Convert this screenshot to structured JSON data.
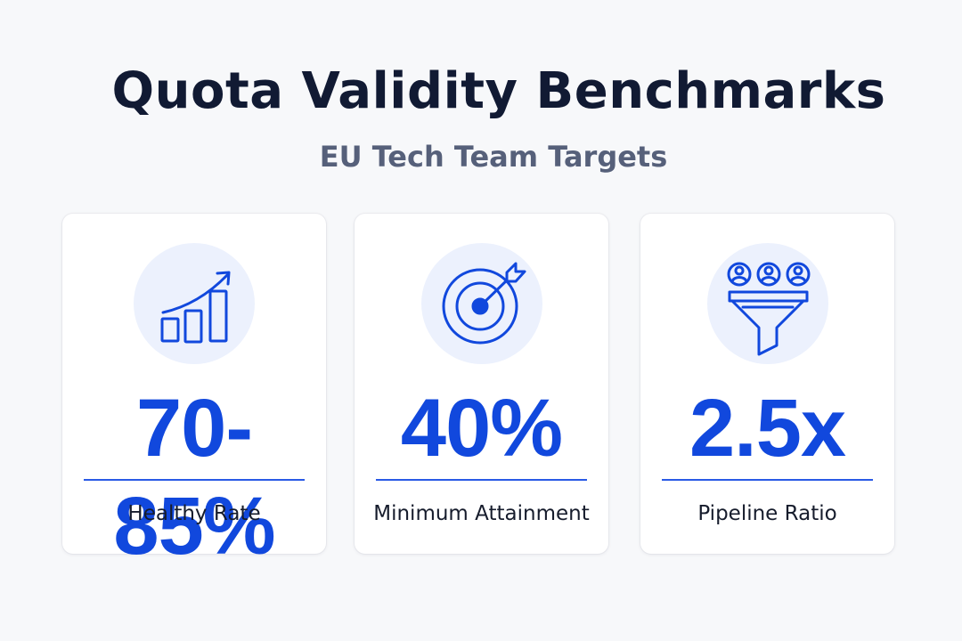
{
  "header": {
    "title": "Quota Validity Benchmarks",
    "subtitle": "EU Tech Team Targets"
  },
  "colors": {
    "accent": "#1148dd",
    "icon_bg": "#ecf1fd",
    "title": "#111a33",
    "subtitle": "#56607a"
  },
  "cards": [
    {
      "icon": "growth-chart-icon",
      "value": "70-85%",
      "label": "Healthy Rate"
    },
    {
      "icon": "target-icon",
      "value": "40%",
      "label": "Minimum Attainment"
    },
    {
      "icon": "funnel-icon",
      "value": "2.5x",
      "label": "Pipeline Ratio"
    }
  ]
}
